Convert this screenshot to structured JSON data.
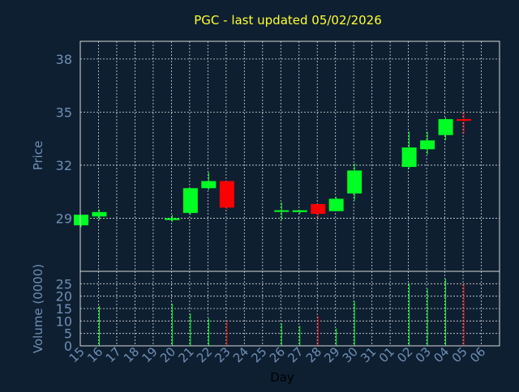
{
  "colors": {
    "background": "#0e1f31",
    "title": "#ffff33",
    "axis_text": "#6f8fb5",
    "grid": "#d8d8d8",
    "up": "#00ff22",
    "down": "#ff0000",
    "frame": "#d8d8d8"
  },
  "chart_data": [
    {
      "type": "candlestick",
      "title": "PGC - last updated 05/02/2026",
      "xlabel": "Day",
      "ylabel": "Price",
      "x_ticks": [
        "15",
        "16",
        "17",
        "18",
        "19",
        "20",
        "21",
        "22",
        "23",
        "24",
        "25",
        "26",
        "27",
        "28",
        "29",
        "30",
        "31",
        "01",
        "02",
        "03",
        "04",
        "05",
        "06"
      ],
      "y_ticks": [
        29,
        32,
        35,
        38
      ],
      "ylim": [
        26.0,
        39.0
      ],
      "grid": true,
      "candles": [
        {
          "day": "15",
          "open": 28.6,
          "high": 29.2,
          "low": 28.5,
          "close": 29.2
        },
        {
          "day": "16",
          "open": 29.1,
          "high": 29.5,
          "low": 28.9,
          "close": 29.35
        },
        {
          "day": "20",
          "open": 28.9,
          "high": 29.2,
          "low": 28.8,
          "close": 29.0
        },
        {
          "day": "21",
          "open": 29.3,
          "high": 30.7,
          "low": 29.2,
          "close": 30.7
        },
        {
          "day": "22",
          "open": 30.7,
          "high": 31.6,
          "low": 30.6,
          "close": 31.1
        },
        {
          "day": "23",
          "open": 31.1,
          "high": 31.1,
          "low": 29.5,
          "close": 29.6
        },
        {
          "day": "26",
          "open": 29.4,
          "high": 29.9,
          "low": 28.9,
          "close": 29.45
        },
        {
          "day": "27",
          "open": 29.35,
          "high": 29.45,
          "low": 29.25,
          "close": 29.45
        },
        {
          "day": "28",
          "open": 29.8,
          "high": 29.8,
          "low": 29.05,
          "close": 29.25
        },
        {
          "day": "29",
          "open": 29.4,
          "high": 30.2,
          "low": 29.4,
          "close": 30.1
        },
        {
          "day": "30",
          "open": 30.4,
          "high": 32.1,
          "low": 30.0,
          "close": 31.7
        },
        {
          "day": "02",
          "open": 31.9,
          "high": 33.9,
          "low": 31.8,
          "close": 33.0
        },
        {
          "day": "03",
          "open": 32.9,
          "high": 33.9,
          "low": 32.6,
          "close": 33.4
        },
        {
          "day": "04",
          "open": 33.7,
          "high": 34.7,
          "low": 33.4,
          "close": 34.6
        },
        {
          "day": "05",
          "open": 34.6,
          "high": 35.0,
          "low": 33.8,
          "close": 34.55
        }
      ]
    },
    {
      "type": "bar",
      "ylabel": "Volume (0000)",
      "y_ticks": [
        0,
        5,
        10,
        15,
        20,
        25
      ],
      "ylim": [
        0,
        30
      ],
      "grid": true,
      "volumes": [
        {
          "day": "15",
          "value": 0,
          "direction": "up"
        },
        {
          "day": "16",
          "value": 16,
          "direction": "up"
        },
        {
          "day": "20",
          "value": 17,
          "direction": "up"
        },
        {
          "day": "21",
          "value": 13,
          "direction": "up"
        },
        {
          "day": "22",
          "value": 11,
          "direction": "up"
        },
        {
          "day": "23",
          "value": 10,
          "direction": "down"
        },
        {
          "day": "26",
          "value": 9,
          "direction": "up"
        },
        {
          "day": "27",
          "value": 8,
          "direction": "up"
        },
        {
          "day": "28",
          "value": 12,
          "direction": "down"
        },
        {
          "day": "29",
          "value": 7,
          "direction": "up"
        },
        {
          "day": "30",
          "value": 18,
          "direction": "up"
        },
        {
          "day": "02",
          "value": 25,
          "direction": "up"
        },
        {
          "day": "03",
          "value": 23,
          "direction": "up"
        },
        {
          "day": "04",
          "value": 27,
          "direction": "up"
        },
        {
          "day": "05",
          "value": 25,
          "direction": "down"
        }
      ]
    }
  ]
}
